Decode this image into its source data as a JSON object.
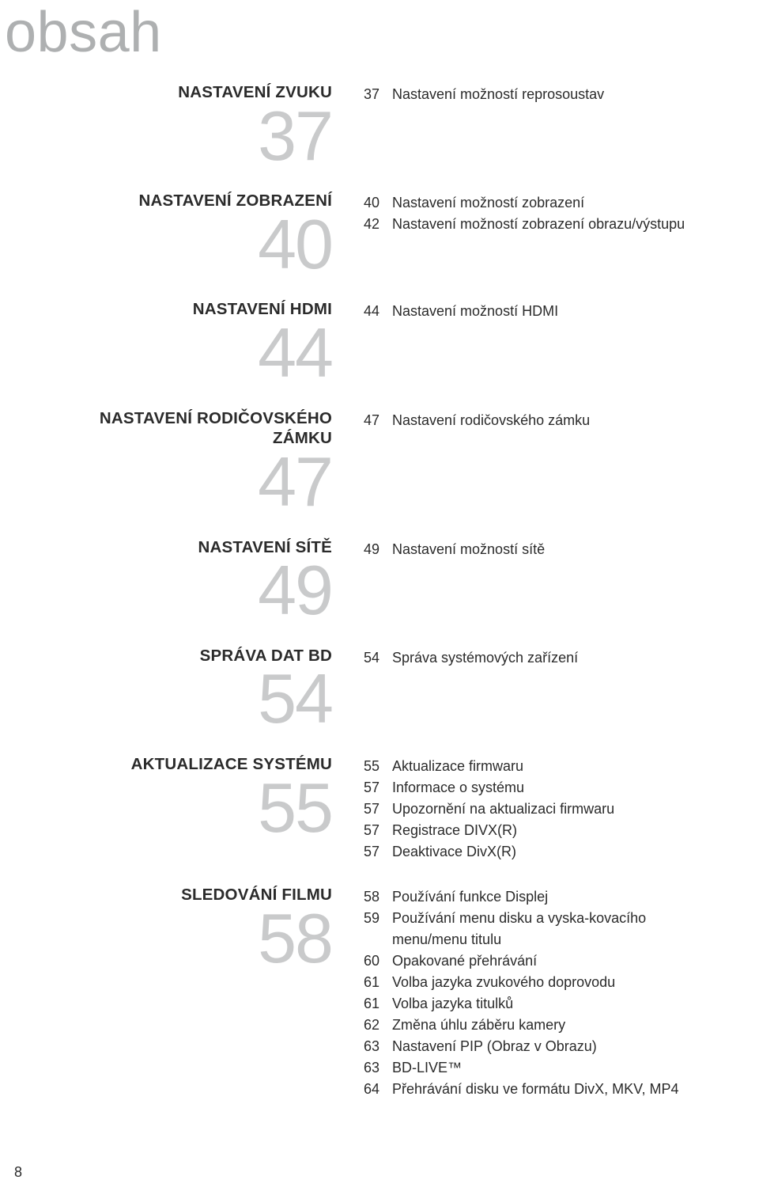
{
  "page_title": "obsah",
  "page_number": "8",
  "colors": {
    "title_gray": "#aeb0b1",
    "big_number_gray": "#c9cacb",
    "text_black": "#2b2b2b",
    "background": "#ffffff"
  },
  "typography": {
    "page_title_fontsize": 72,
    "page_title_weight": 300,
    "heading_fontsize": 20.5,
    "heading_weight": 700,
    "big_number_fontsize": 88,
    "big_number_weight": 300,
    "entry_fontsize": 18
  },
  "sections": [
    {
      "heading": "NASTAVENÍ ZVUKU",
      "big_number": "37",
      "entries": [
        {
          "page": "37",
          "text": "Nastavení možností reprosoustav"
        }
      ]
    },
    {
      "heading": "NASTAVENÍ ZOBRAZENÍ",
      "big_number": "40",
      "entries": [
        {
          "page": "40",
          "text": "Nastavení možností zobrazení"
        },
        {
          "page": "42",
          "text": "Nastavení možností zobrazení obrazu/výstupu"
        }
      ]
    },
    {
      "heading": "NASTAVENÍ HDMI",
      "big_number": "44",
      "entries": [
        {
          "page": "44",
          "text": "Nastavení možností HDMI"
        }
      ]
    },
    {
      "heading": "NASTAVENÍ RODIČOVSKÉHO ZÁMKU",
      "big_number": "47",
      "entries": [
        {
          "page": "47",
          "text": "Nastavení rodičovského zámku"
        }
      ]
    },
    {
      "heading": "NASTAVENÍ SÍTĚ",
      "big_number": "49",
      "entries": [
        {
          "page": "49",
          "text": "Nastavení možností sítě"
        }
      ]
    },
    {
      "heading": "SPRÁVA DAT BD",
      "big_number": "54",
      "entries": [
        {
          "page": "54",
          "text": "Správa systémových zařízení"
        }
      ]
    },
    {
      "heading": "AKTUALIZACE SYSTÉMU",
      "big_number": "55",
      "entries": [
        {
          "page": "55",
          "text": "Aktualizace firmwaru"
        },
        {
          "page": "57",
          "text": "Informace o systému"
        },
        {
          "page": "57",
          "text": "Upozornění na aktualizaci firmwaru"
        },
        {
          "page": "57",
          "text": "Registrace DIVX(R)"
        },
        {
          "page": "57",
          "text": "Deaktivace DivX(R)"
        }
      ]
    },
    {
      "heading": "SLEDOVÁNÍ FILMU",
      "big_number": "58",
      "entries": [
        {
          "page": "58",
          "text": "Používání funkce Displej"
        },
        {
          "page": "59",
          "text": "Používání menu disku a vyska-kovacího menu/menu titulu"
        },
        {
          "page": "60",
          "text": "Opakované přehrávání"
        },
        {
          "page": "61",
          "text": "Volba jazyka zvukového doprovodu"
        },
        {
          "page": "61",
          "text": "Volba jazyka titulků"
        },
        {
          "page": "62",
          "text": "Změna úhlu záběru kamery"
        },
        {
          "page": "63",
          "text": "Nastavení PIP (Obraz v Obrazu)"
        },
        {
          "page": "63",
          "text": "BD-LIVE™"
        },
        {
          "page": "64",
          "text": "Přehrávání disku ve formátu DivX, MKV, MP4"
        }
      ]
    }
  ]
}
